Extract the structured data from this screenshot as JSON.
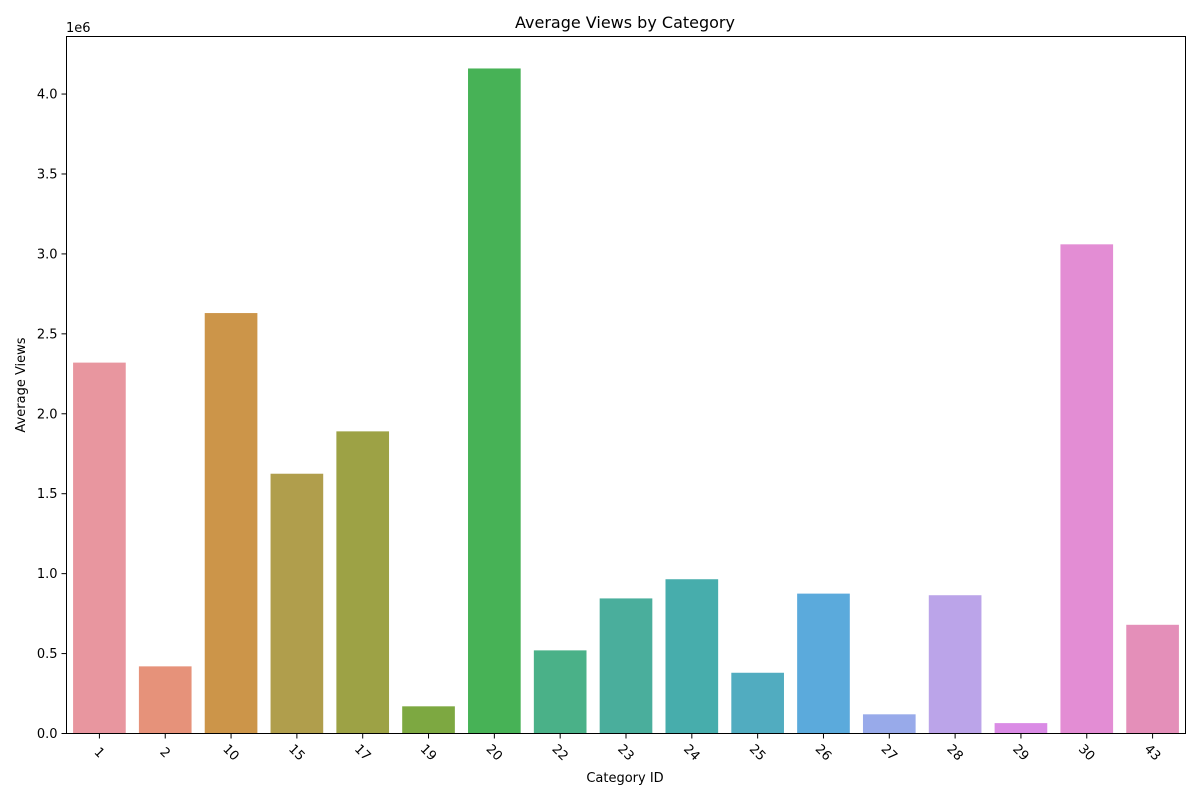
{
  "chart_data": {
    "type": "bar",
    "title": "Average Views by Category",
    "xlabel": "Category ID",
    "ylabel": "Average Views",
    "y_offset_label": "1e6",
    "ylim": [
      0,
      4360000
    ],
    "yticks": [
      0.0,
      0.5,
      1.0,
      1.5,
      2.0,
      2.5,
      3.0,
      3.5,
      4.0
    ],
    "ytick_labels": [
      "0.0",
      "0.5",
      "1.0",
      "1.5",
      "2.0",
      "2.5",
      "3.0",
      "3.5",
      "4.0"
    ],
    "grid": false,
    "xtick_rotation": 45,
    "categories": [
      "1",
      "2",
      "10",
      "15",
      "17",
      "19",
      "20",
      "22",
      "23",
      "24",
      "25",
      "26",
      "27",
      "28",
      "29",
      "30",
      "43"
    ],
    "values": [
      2320000,
      420000,
      2630000,
      1625000,
      1890000,
      170000,
      4160000,
      520000,
      845000,
      965000,
      380000,
      875000,
      120000,
      865000,
      65000,
      3060000,
      680000
    ],
    "colors": [
      "#e8969f",
      "#e6927a",
      "#cc9549",
      "#b09e4c",
      "#9da245",
      "#7da841",
      "#47b256",
      "#4ab188",
      "#4aae9c",
      "#47adac",
      "#51acc0",
      "#5baadc",
      "#98aaea",
      "#bba4e9",
      "#da8be5",
      "#e38dd4",
      "#e48fb9"
    ]
  }
}
